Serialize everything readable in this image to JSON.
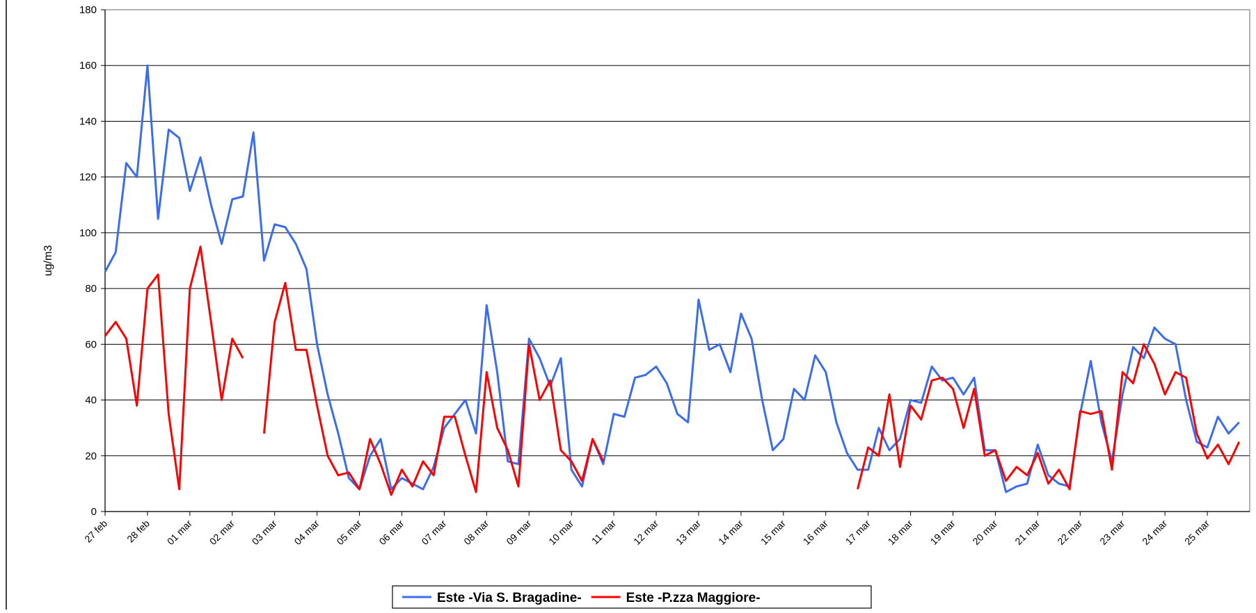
{
  "chart_data": {
    "type": "line",
    "y_label": "ug/m3",
    "ylim": [
      0,
      180
    ],
    "yticks": [
      0,
      20,
      40,
      60,
      80,
      100,
      120,
      140,
      160,
      180
    ],
    "grid": true,
    "legend": "bottom",
    "categories": [
      "27 feb",
      null,
      null,
      null,
      "28 feb",
      null,
      null,
      null,
      "01 mar",
      null,
      null,
      null,
      "02 mar",
      null,
      null,
      null,
      "03 mar",
      null,
      null,
      null,
      "04 mar",
      null,
      null,
      null,
      "05 mar",
      null,
      null,
      null,
      "06 mar",
      null,
      null,
      null,
      "07 mar",
      null,
      null,
      null,
      "08 mar",
      null,
      null,
      null,
      "09 mar",
      null,
      null,
      null,
      "10 mar",
      null,
      null,
      null,
      "11 mar",
      null,
      null,
      null,
      "12 mar",
      null,
      null,
      null,
      "13 mar",
      null,
      null,
      null,
      "14 mar",
      null,
      null,
      null,
      "15 mar",
      null,
      null,
      null,
      "16 mar",
      null,
      null,
      null,
      "17 mar",
      null,
      null,
      null,
      "18 mar",
      null,
      null,
      null,
      "19 mar",
      null,
      null,
      null,
      "20 mar",
      null,
      null,
      null,
      "21 mar",
      null,
      null,
      null,
      "22 mar",
      null,
      null,
      null,
      "23 mar",
      null,
      null,
      null,
      "24 mar",
      null,
      null,
      null,
      "25 mar",
      null,
      null,
      null
    ],
    "series": [
      {
        "name": "Este -Via S. Bragadine-",
        "color": "#3a6cf0",
        "values": [
          86,
          93,
          125,
          120,
          160,
          105,
          137,
          134,
          115,
          127,
          110,
          96,
          112,
          113,
          136,
          90,
          103,
          102,
          96,
          87,
          60,
          42,
          28,
          12,
          8,
          20,
          26,
          8,
          12,
          10,
          8,
          16,
          30,
          35,
          40,
          28,
          74,
          50,
          18,
          17,
          62,
          55,
          45,
          55,
          15,
          9,
          26,
          17,
          35,
          34,
          48,
          49,
          52,
          46,
          35,
          32,
          76,
          58,
          60,
          50,
          71,
          62,
          40,
          22,
          26,
          44,
          40,
          56,
          50,
          32,
          21,
          15,
          15,
          30,
          22,
          26,
          40,
          39,
          52,
          47,
          48,
          42,
          48,
          22,
          22,
          7,
          9,
          10,
          24,
          13,
          10,
          9,
          35,
          54,
          32,
          18,
          42,
          59,
          55,
          66,
          62,
          60,
          40,
          25,
          23,
          34,
          28,
          32
        ]
      },
      {
        "name": "Este -P.zza Maggiore-",
        "color": "#ff0000",
        "values": [
          63,
          68,
          62,
          38,
          80,
          85,
          35,
          8,
          80,
          95,
          68,
          40,
          62,
          55,
          null,
          28,
          68,
          82,
          58,
          58,
          38,
          20,
          13,
          14,
          8,
          26,
          17,
          6,
          15,
          9,
          18,
          13,
          34,
          34,
          20,
          7,
          50,
          30,
          22,
          9,
          60,
          40,
          47,
          22,
          18,
          11,
          26,
          18,
          null,
          null,
          null,
          null,
          null,
          null,
          null,
          null,
          null,
          null,
          null,
          null,
          null,
          null,
          null,
          null,
          null,
          null,
          null,
          null,
          null,
          null,
          null,
          8,
          23,
          20,
          42,
          16,
          38,
          33,
          47,
          48,
          44,
          30,
          44,
          20,
          22,
          11,
          16,
          13,
          21,
          10,
          15,
          8,
          36,
          35,
          36,
          15,
          50,
          46,
          60,
          53,
          42,
          50,
          48,
          28,
          19,
          24,
          17,
          25
        ]
      }
    ]
  }
}
